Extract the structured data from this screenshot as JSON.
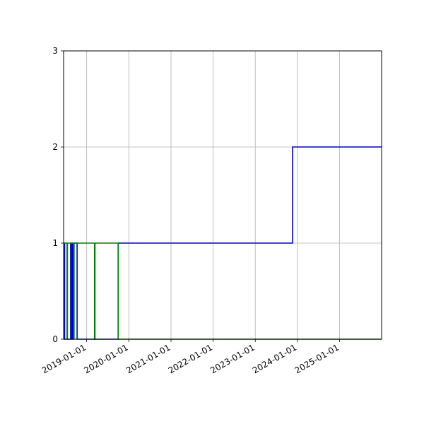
{
  "chart_data": {
    "type": "line",
    "title": "",
    "xlabel": "",
    "ylabel": "",
    "xlim": [
      "2018-06-15",
      "2025-12-31"
    ],
    "ylim": [
      0,
      3
    ],
    "grid": true,
    "x_ticks": [
      "2019-01-01",
      "2020-01-01",
      "2021-01-01",
      "2022-01-01",
      "2023-01-01",
      "2024-01-01",
      "2025-01-01"
    ],
    "y_ticks": [
      "0",
      "1",
      "2",
      "3"
    ],
    "series": [
      {
        "color": "#0000cc",
        "step": true,
        "points": [
          {
            "x": "2018-06-15",
            "y": 1
          },
          {
            "x": "2018-06-24",
            "y": 1
          },
          {
            "x": "2018-06-24",
            "y": 0
          },
          {
            "x": "2018-07-10",
            "y": 0
          },
          {
            "x": "2018-07-10",
            "y": 0
          },
          {
            "x": "2018-08-15",
            "y": 0
          },
          {
            "x": "2018-08-15",
            "y": 1
          },
          {
            "x": "2018-08-22",
            "y": 1
          },
          {
            "x": "2018-08-22",
            "y": 0
          },
          {
            "x": "2018-09-01",
            "y": 0
          },
          {
            "x": "2018-09-01",
            "y": 1
          },
          {
            "x": "2018-10-10",
            "y": 1
          },
          {
            "x": "2018-10-10",
            "y": 0
          },
          {
            "x": "2019-10-01",
            "y": 0
          },
          {
            "x": "2019-10-01",
            "y": 1
          },
          {
            "x": "2023-11-20",
            "y": 1
          },
          {
            "x": "2023-11-20",
            "y": 2
          },
          {
            "x": "2025-12-31",
            "y": 2
          }
        ]
      },
      {
        "color": "#008000",
        "step": true,
        "points": [
          {
            "x": "2018-06-15",
            "y": 1
          },
          {
            "x": "2018-07-15",
            "y": 1
          },
          {
            "x": "2018-07-15",
            "y": 0
          },
          {
            "x": "2018-07-18",
            "y": 0
          },
          {
            "x": "2018-07-18",
            "y": 1
          },
          {
            "x": "2018-09-10",
            "y": 1
          },
          {
            "x": "2018-09-10",
            "y": 0
          },
          {
            "x": "2018-09-14",
            "y": 0
          },
          {
            "x": "2018-09-14",
            "y": 1
          },
          {
            "x": "2019-03-10",
            "y": 1
          },
          {
            "x": "2019-03-10",
            "y": 0
          },
          {
            "x": "2019-03-14",
            "y": 0
          },
          {
            "x": "2019-03-14",
            "y": 1
          },
          {
            "x": "2019-10-01",
            "y": 1
          },
          {
            "x": "2019-10-01",
            "y": 0
          },
          {
            "x": "2025-12-31",
            "y": 0
          }
        ]
      }
    ]
  }
}
